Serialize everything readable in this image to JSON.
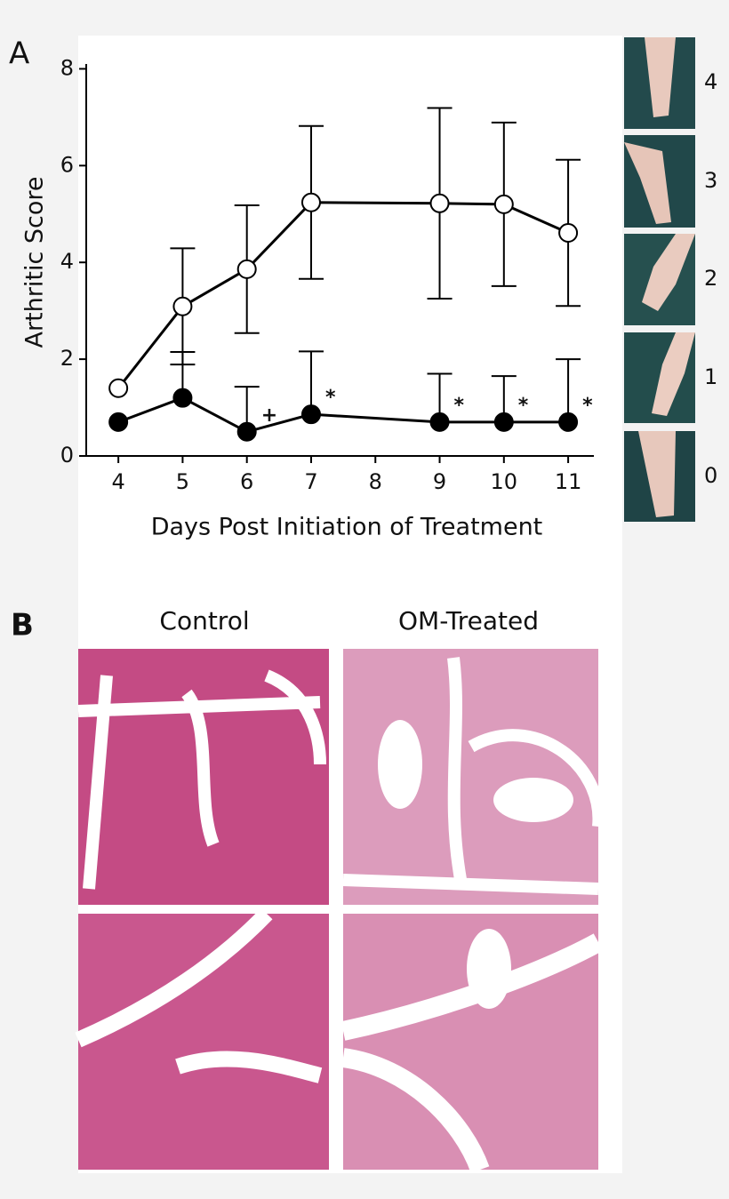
{
  "panel_labels": [
    "A",
    "B"
  ],
  "chart_data": {
    "type": "line",
    "ylabel": "Arthritic Score",
    "xlabel": "Days Post Initiation of Treatment",
    "xlim": [
      3.5,
      11.4
    ],
    "xticks": [
      4,
      5,
      6,
      7,
      8,
      9,
      10,
      11
    ],
    "ylim": [
      0,
      8.1
    ],
    "yticks": [
      0,
      2,
      4,
      6,
      8
    ],
    "series": [
      {
        "color": "#000000",
        "marker_fill": "#ffffff",
        "error_bars": "both",
        "x": [
          4,
          5,
          6,
          7,
          9,
          10,
          11
        ],
        "values": [
          1.4,
          3.09,
          3.86,
          5.24,
          5.22,
          5.2,
          4.61
        ],
        "errors": [
          0,
          1.2,
          1.32,
          1.58,
          1.97,
          1.69,
          1.51
        ]
      },
      {
        "color": "#000000",
        "marker_fill": "#000000",
        "error_bars": "up",
        "x": [
          4,
          5,
          6,
          7,
          9,
          10,
          11
        ],
        "values": [
          0.7,
          1.2,
          0.5,
          0.86,
          0.7,
          0.7,
          0.7
        ],
        "errors": [
          0,
          0.95,
          0.93,
          1.3,
          1.0,
          0.95,
          1.3
        ]
      }
    ],
    "annotations": [
      {
        "text": "+",
        "x": 6
      },
      {
        "text": "*",
        "x": 7
      },
      {
        "text": "*",
        "x": 9
      },
      {
        "text": "*",
        "x": 10
      },
      {
        "text": "*",
        "x": 11
      }
    ]
  },
  "paw_scores": [
    "4",
    "3",
    "2",
    "1",
    "0"
  ],
  "histology_headers": [
    "Control",
    "OM-Treated"
  ]
}
